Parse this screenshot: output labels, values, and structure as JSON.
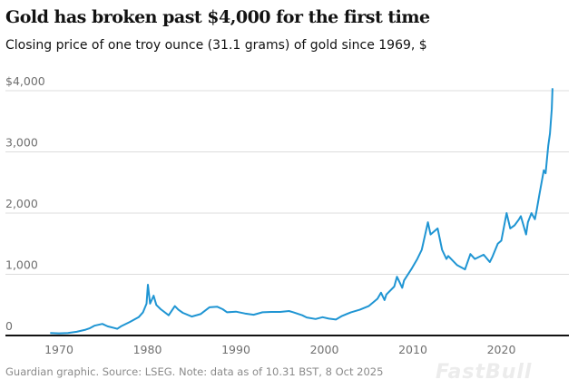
{
  "chart_data": {
    "type": "line",
    "title": "Gold has broken past $4,000 for the first time",
    "subtitle": "Closing price of one troy ounce (31.1 grams) of gold since 1969, $",
    "source": "Guardian graphic. Source: LSEG. Note: data as of 10.31 BST, 8 Oct 2025",
    "watermark": "FastBull",
    "xlim": [
      1969,
      2025.8
    ],
    "ylim": [
      0,
      4000
    ],
    "grid": true,
    "line_color": "#1f95d3",
    "x_ticks": [
      "1970",
      "1980",
      "1990",
      "2000",
      "2010",
      "2020"
    ],
    "y_ticks": [
      "0",
      "1,000",
      "2,000",
      "3,000",
      "$4,000"
    ],
    "y_tick_values": [
      0,
      1000,
      2000,
      3000,
      4000
    ],
    "x_tick_values": [
      1970,
      1980,
      1990,
      2000,
      2010,
      2020
    ],
    "series": [
      {
        "x": [
          1969,
          1970,
          1971,
          1972,
          1973,
          1973.5,
          1974,
          1974.9,
          1975.5,
          1976.6,
          1977,
          1978,
          1979,
          1979.5,
          1979.9,
          1980.05,
          1980.3,
          1980.7,
          1981,
          1981.5,
          1982.4,
          1983.1,
          1983.5,
          1984,
          1985,
          1986,
          1987,
          1987.9,
          1988.5,
          1989,
          1990,
          1991,
          1992,
          1993,
          1994,
          1995,
          1996,
          1996.5,
          1997.5,
          1998,
          1999,
          1999.8,
          2000.5,
          2001.3,
          2002,
          2003,
          2004,
          2005,
          2006,
          2006.4,
          2006.8,
          2007,
          2007.9,
          2008.2,
          2008.8,
          2009,
          2009.9,
          2010.5,
          2011,
          2011.7,
          2012,
          2012.8,
          2013.3,
          2013.8,
          2014,
          2015,
          2015.9,
          2016.5,
          2017,
          2018,
          2018.7,
          2019,
          2019.6,
          2020,
          2020.6,
          2021,
          2021.5,
          2022,
          2022.2,
          2022.8,
          2023,
          2023.4,
          2023.8,
          2024,
          2024.3,
          2024.8,
          2025,
          2025.3,
          2025.5,
          2025.7,
          2025.78
        ],
        "y": [
          42,
          36,
          40,
          60,
          95,
          120,
          160,
          190,
          150,
          110,
          150,
          220,
          300,
          380,
          520,
          830,
          520,
          650,
          500,
          430,
          330,
          480,
          420,
          370,
          310,
          350,
          460,
          470,
          430,
          380,
          390,
          360,
          340,
          380,
          385,
          385,
          400,
          380,
          330,
          295,
          270,
          300,
          275,
          260,
          320,
          380,
          420,
          480,
          600,
          700,
          580,
          670,
          800,
          960,
          780,
          900,
          1100,
          1250,
          1400,
          1850,
          1650,
          1750,
          1400,
          1250,
          1300,
          1150,
          1080,
          1330,
          1250,
          1320,
          1200,
          1290,
          1500,
          1550,
          2000,
          1750,
          1800,
          1900,
          1950,
          1650,
          1850,
          2000,
          1900,
          2050,
          2300,
          2700,
          2650,
          3100,
          3300,
          3700,
          4040
        ]
      }
    ]
  }
}
